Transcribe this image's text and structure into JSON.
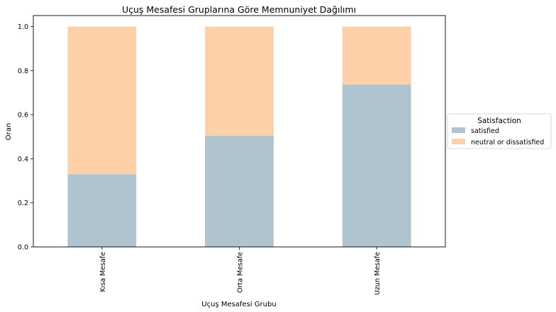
{
  "colors": {
    "satisfied": "#aec5cf",
    "neutral_or_dissatisfied": "#fdd0a7",
    "axis": "#000000",
    "legend_border": "#cccccc"
  },
  "chart_data": {
    "type": "bar",
    "stacked": true,
    "title": "Uçuş Mesafesi Gruplarına Göre Memnuniyet Dağılımı",
    "xlabel": "Uçuş Mesafesi Grubu",
    "ylabel": "Oran",
    "categories": [
      "Kısa Mesafe",
      "Orta Mesafe",
      "Uzun Mesafe"
    ],
    "ylim": [
      0,
      1.05
    ],
    "yticks": [
      "0.0",
      "0.2",
      "0.4",
      "0.6",
      "0.8",
      "1.0"
    ],
    "grid": false,
    "legend": {
      "title": "Satisfaction",
      "placement": "center-right outside"
    },
    "series": [
      {
        "name": "satisfied",
        "values": [
          0.33,
          0.505,
          0.737
        ]
      },
      {
        "name": "neutral or dissatisfied",
        "values": [
          0.67,
          0.495,
          0.263
        ]
      }
    ]
  }
}
